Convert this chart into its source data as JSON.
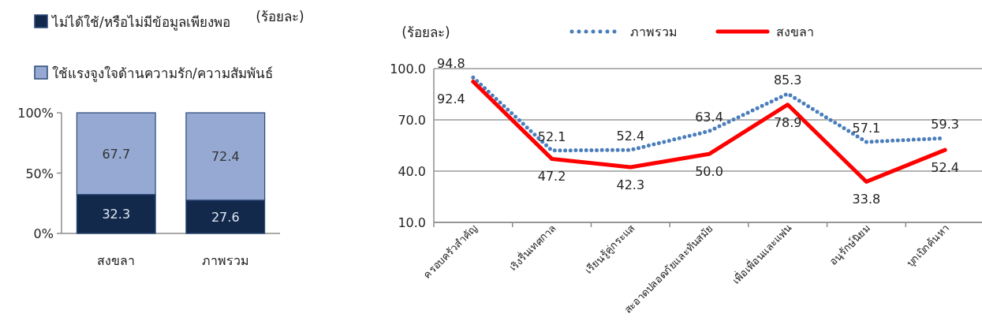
{
  "chart_data": [
    {
      "type": "bar",
      "stacked": true,
      "ylabel": "(ร้อยละ)",
      "categories": [
        "สงขลา",
        "ภาพรวม"
      ],
      "series": [
        {
          "name": "ไม่ได้ใช้/หรือไม่มีข้อมูลเพียงพอ",
          "color": "#13294b",
          "values": [
            32.3,
            27.6
          ]
        },
        {
          "name": "ใช้แรงจูงใจด้านความรัก/ความสัมพันธ์",
          "color": "#95a9d2",
          "values": [
            67.7,
            72.4
          ]
        }
      ],
      "ylim": [
        0,
        100
      ],
      "yticks": [
        {
          "value": 0,
          "label": "0%"
        },
        {
          "value": 50,
          "label": "50%"
        },
        {
          "value": 100,
          "label": "100%"
        }
      ],
      "data_labels": true,
      "legend": "top"
    },
    {
      "type": "line",
      "ylabel": "(ร้อยละ)",
      "categories": [
        "ครอบครัวสำคัญ",
        "เริงรื่นเทศกาล",
        "เรียนรู้คู่กระแส",
        "สะอาดปลอดภัยและทันสมัย",
        "เพื่อเพื่อนและแฟน",
        "อนุรักษ์นิยม",
        "บุกเบิกค้นหา"
      ],
      "series": [
        {
          "name": "ภาพรวม",
          "color": "#4a7ebb",
          "line_style": "dotted",
          "values": [
            94.8,
            52.1,
            52.4,
            63.4,
            85.3,
            57.1,
            59.3
          ],
          "value_labels": [
            "94.8",
            "52.1",
            "52.4",
            "63.4",
            "85.3",
            "57.1",
            "59.3"
          ]
        },
        {
          "name": "สงขลา",
          "color": "#ff0000",
          "line_style": "solid",
          "values": [
            92.4,
            47.2,
            42.3,
            50.0,
            78.9,
            33.8,
            52.4
          ],
          "value_labels": [
            "92.4",
            "47.2",
            "42.3",
            "50.0",
            "78.9",
            "33.8",
            "52.4"
          ]
        }
      ],
      "ylim": [
        10,
        100
      ],
      "yticks": [
        {
          "value": 10,
          "label": "10.0"
        },
        {
          "value": 40,
          "label": "40.0"
        },
        {
          "value": 70,
          "label": "70.0"
        },
        {
          "value": 100,
          "label": "100.0"
        }
      ],
      "grid": "y",
      "legend": "top"
    }
  ]
}
